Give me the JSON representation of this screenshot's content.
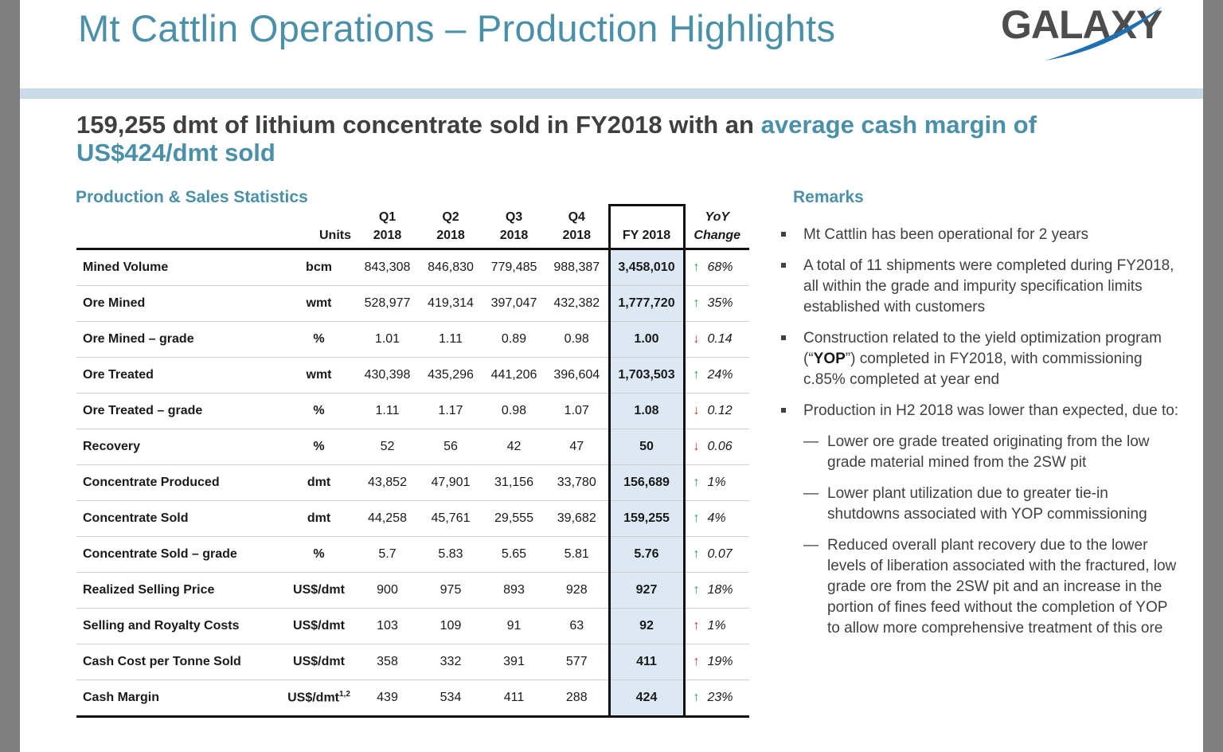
{
  "title": "Mt Cattlin Operations – Production Highlights",
  "logo": {
    "text": "GALAXY",
    "colors": {
      "text": "#4d4d4d",
      "swoosh": "#1f6fb5"
    }
  },
  "headline": {
    "part1": "159,255 dmt of lithium concentrate sold in FY2018 with an ",
    "part2": "average cash margin of US$424/dmt sold"
  },
  "stats": {
    "section_title": "Production & Sales Statistics",
    "headers": {
      "units": "Units",
      "q1": [
        "Q1",
        "2018"
      ],
      "q2": [
        "Q2",
        "2018"
      ],
      "q3": [
        "Q3",
        "2018"
      ],
      "q4": [
        "Q4",
        "2018"
      ],
      "fy": "FY 2018",
      "yoy": [
        "YoY",
        "Change"
      ]
    },
    "rows": [
      {
        "label": "Mined Volume",
        "unit": "bcm",
        "q1": "843,308",
        "q2": "846,830",
        "q3": "779,485",
        "q4": "988,387",
        "fy": "3,458,010",
        "yoy_dir": "up",
        "yoy": "68%"
      },
      {
        "label": "Ore Mined",
        "unit": "wmt",
        "q1": "528,977",
        "q2": "419,314",
        "q3": "397,047",
        "q4": "432,382",
        "fy": "1,777,720",
        "yoy_dir": "up",
        "yoy": "35%"
      },
      {
        "label": "Ore Mined – grade",
        "unit": "%",
        "q1": "1.01",
        "q2": "1.11",
        "q3": "0.89",
        "q4": "0.98",
        "fy": "1.00",
        "yoy_dir": "down",
        "yoy": "0.14"
      },
      {
        "label": "Ore Treated",
        "unit": "wmt",
        "q1": "430,398",
        "q2": "435,296",
        "q3": "441,206",
        "q4": "396,604",
        "fy": "1,703,503",
        "yoy_dir": "up",
        "yoy": "24%"
      },
      {
        "label": "Ore Treated – grade",
        "unit": "%",
        "q1": "1.11",
        "q2": "1.17",
        "q3": "0.98",
        "q4": "1.07",
        "fy": "1.08",
        "yoy_dir": "down",
        "yoy": "0.12"
      },
      {
        "label": "Recovery",
        "unit": "%",
        "q1": "52",
        "q2": "56",
        "q3": "42",
        "q4": "47",
        "fy": "50",
        "yoy_dir": "down",
        "yoy": "0.06"
      },
      {
        "label": "Concentrate Produced",
        "unit": "dmt",
        "q1": "43,852",
        "q2": "47,901",
        "q3": "31,156",
        "q4": "33,780",
        "fy": "156,689",
        "yoy_dir": "up",
        "yoy": "1%"
      },
      {
        "label": "Concentrate Sold",
        "unit": "dmt",
        "q1": "44,258",
        "q2": "45,761",
        "q3": "29,555",
        "q4": "39,682",
        "fy": "159,255",
        "yoy_dir": "up",
        "yoy": "4%"
      },
      {
        "label": "Concentrate Sold – grade",
        "unit": "%",
        "q1": "5.7",
        "q2": "5.83",
        "q3": "5.65",
        "q4": "5.81",
        "fy": "5.76",
        "yoy_dir": "up",
        "yoy": "0.07"
      },
      {
        "label": "Realized Selling Price",
        "unit": "US$/dmt",
        "q1": "900",
        "q2": "975",
        "q3": "893",
        "q4": "928",
        "fy": "927",
        "yoy_dir": "up",
        "yoy": "18%"
      },
      {
        "label": "Selling and Royalty Costs",
        "unit": "US$/dmt",
        "q1": "103",
        "q2": "109",
        "q3": "91",
        "q4": "63",
        "fy": "92",
        "yoy_dir": "up-red",
        "yoy": "1%"
      },
      {
        "label": "Cash Cost per Tonne Sold",
        "unit": "US$/dmt",
        "q1": "358",
        "q2": "332",
        "q3": "391",
        "q4": "577",
        "fy": "411",
        "yoy_dir": "up-red",
        "yoy": "19%"
      },
      {
        "label": "Cash Margin",
        "unit": "US$/dmt",
        "unit_sup": "1,2",
        "q1": "439",
        "q2": "534",
        "q3": "411",
        "q4": "288",
        "fy": "424",
        "yoy_dir": "up",
        "yoy": "23%"
      }
    ]
  },
  "remarks": {
    "section_title": "Remarks",
    "bullets": [
      {
        "text": "Mt Cattlin has been operational for 2 years"
      },
      {
        "text": "A total of 11 shipments were completed during FY2018, all within the grade and impurity specification limits established with customers"
      },
      {
        "pre": "Construction related to the yield optimization program (“",
        "bold": "YOP",
        "post": "”) completed in FY2018, with commissioning c.85% completed at year end"
      },
      {
        "text": "Production in H2 2018 was lower than expected, due to:"
      }
    ],
    "subs": [
      "Lower ore grade treated originating from the low grade material mined from the 2SW pit",
      "Lower plant utilization due to greater tie-in shutdowns associated with YOP commissioning",
      "Reduced overall plant recovery due to the lower levels of liberation associated with the fractured, low grade ore from the 2SW pit and an increase in the portion of fines feed without the completion of YOP to allow more comprehensive treatment of this ore"
    ]
  }
}
